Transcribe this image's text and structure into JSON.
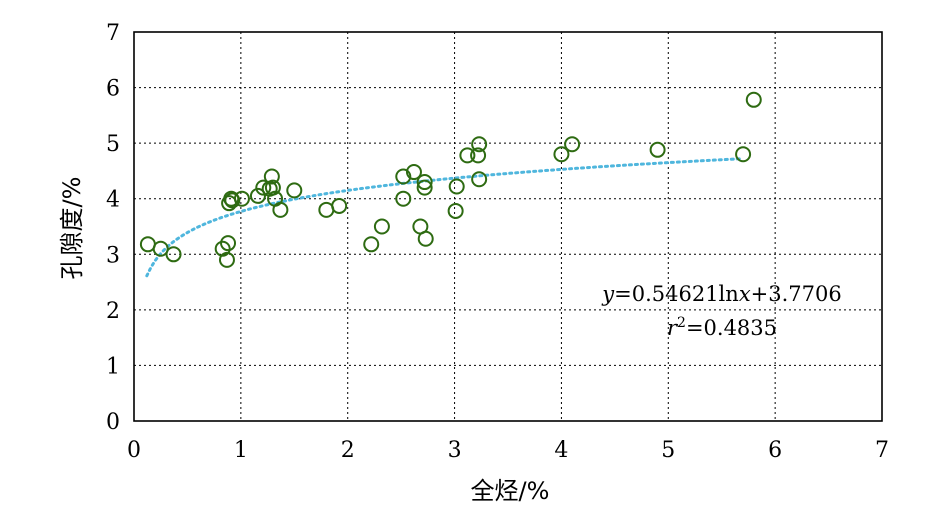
{
  "chart_data": {
    "type": "scatter",
    "title": "",
    "xlabel": "全烃/%",
    "ylabel": "孔隙度/%",
    "xlim": [
      0,
      7
    ],
    "ylim": [
      0,
      7
    ],
    "xticks": [
      "0",
      "1",
      "2",
      "3",
      "4",
      "5",
      "6",
      "7"
    ],
    "yticks": [
      "0",
      "1",
      "2",
      "3",
      "4",
      "5",
      "6",
      "7"
    ],
    "grid": true,
    "series": [
      {
        "marker": "open-circle",
        "color": "#2e6b12",
        "points": [
          [
            0.13,
            3.18
          ],
          [
            0.25,
            3.1
          ],
          [
            0.37,
            3.0
          ],
          [
            0.83,
            3.1
          ],
          [
            0.87,
            2.9
          ],
          [
            0.88,
            3.2
          ],
          [
            0.89,
            3.92
          ],
          [
            0.91,
            4.0
          ],
          [
            0.92,
            3.97
          ],
          [
            1.01,
            4.0
          ],
          [
            1.16,
            4.05
          ],
          [
            1.21,
            4.2
          ],
          [
            1.27,
            4.18
          ],
          [
            1.29,
            4.4
          ],
          [
            1.3,
            4.2
          ],
          [
            1.32,
            4.0
          ],
          [
            1.37,
            3.8
          ],
          [
            1.5,
            4.15
          ],
          [
            1.8,
            3.8
          ],
          [
            1.92,
            3.87
          ],
          [
            2.22,
            3.18
          ],
          [
            2.32,
            3.5
          ],
          [
            2.52,
            4.0
          ],
          [
            2.52,
            4.4
          ],
          [
            2.62,
            4.48
          ],
          [
            2.68,
            3.5
          ],
          [
            2.72,
            4.3
          ],
          [
            2.72,
            4.2
          ],
          [
            2.73,
            3.28
          ],
          [
            3.01,
            3.78
          ],
          [
            3.02,
            4.22
          ],
          [
            3.12,
            4.78
          ],
          [
            3.22,
            4.78
          ],
          [
            3.23,
            4.98
          ],
          [
            3.23,
            4.35
          ],
          [
            4.0,
            4.8
          ],
          [
            4.1,
            4.98
          ],
          [
            4.9,
            4.88
          ],
          [
            5.7,
            4.8
          ],
          [
            5.8,
            5.78
          ]
        ]
      }
    ],
    "trendline": {
      "type": "logarithmic",
      "a": 0.54621,
      "b": 3.7706,
      "x_range": [
        0.12,
        5.7
      ],
      "color": "#4fb6dd",
      "style": "dotted"
    },
    "annotations": {
      "equation_prefix": "y",
      "equation_mid": "=0.54621ln",
      "equation_var": "x",
      "equation_suffix": "+3.7706",
      "r2_var": "r",
      "r2_exp": "2",
      "r2_value": "=0.4835"
    }
  }
}
